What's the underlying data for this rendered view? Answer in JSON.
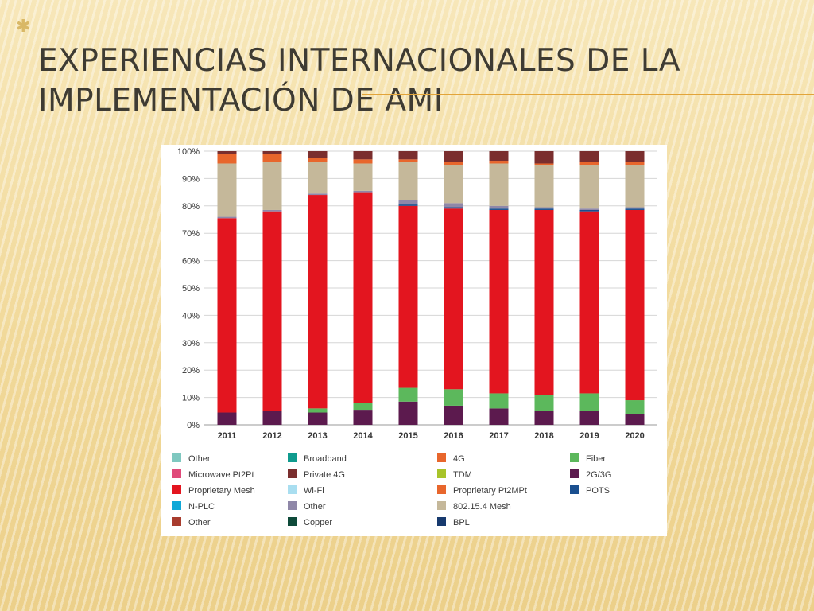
{
  "slide": {
    "title_line1": "Experiencias internacionales de la",
    "title_line2": "implementación de AMI"
  },
  "colors": {
    "accent_rule": "#e2a43a",
    "title_text": "#3e3b33"
  },
  "chart_data": {
    "type": "bar",
    "stacked": true,
    "categories": [
      "2011",
      "2012",
      "2013",
      "2014",
      "2015",
      "2016",
      "2017",
      "2018",
      "2019",
      "2020"
    ],
    "y_ticks": [
      "0%",
      "10%",
      "20%",
      "30%",
      "40%",
      "50%",
      "60%",
      "70%",
      "80%",
      "90%",
      "100%"
    ],
    "ylim": [
      0,
      100
    ],
    "grid": true,
    "legend_position": "bottom",
    "title": "",
    "xlabel": "",
    "ylabel": "",
    "series": [
      {
        "name": "2G/3G",
        "color": "#5c1a4e",
        "values": [
          4.5,
          5,
          4.5,
          5.5,
          8.5,
          7,
          6,
          5,
          5,
          4
        ]
      },
      {
        "name": "Fiber",
        "color": "#5cb85c",
        "values": [
          0,
          0,
          1.5,
          2.5,
          5,
          6,
          5.5,
          6,
          6.5,
          5
        ]
      },
      {
        "name": "Proprietary Mesh",
        "color": "#e3151f",
        "values": [
          71,
          73,
          78,
          77,
          66.5,
          66,
          67,
          67.5,
          66.5,
          69.5
        ]
      },
      {
        "name": "POTS",
        "color": "#1a4f8f",
        "values": [
          0,
          0,
          0,
          0,
          0.5,
          0.5,
          0.5,
          0.5,
          0.5,
          0.5
        ]
      },
      {
        "name": "Other",
        "color": "#8f87a8",
        "values": [
          0.5,
          0.5,
          0.5,
          0.5,
          1.5,
          1.5,
          1,
          0.5,
          0.5,
          0.5
        ]
      },
      {
        "name": "802.15.4 Mesh",
        "color": "#c5b89a",
        "values": [
          19.5,
          17.5,
          11.5,
          10,
          14,
          14,
          15.5,
          15.5,
          16,
          15.5
        ]
      },
      {
        "name": "Proprietary Pt2MPt",
        "color": "#e8662c",
        "values": [
          3.5,
          3,
          1.5,
          1.5,
          1,
          1,
          1,
          0.5,
          1,
          1
        ]
      },
      {
        "name": "Private 4G",
        "color": "#7a2e2e",
        "values": [
          1,
          1,
          2.5,
          3,
          3,
          4,
          3.5,
          4.5,
          4,
          4
        ]
      }
    ],
    "legend": [
      {
        "label": "Other",
        "color": "#7fc8c0"
      },
      {
        "label": "Broadband",
        "color": "#0f9b8e"
      },
      {
        "label": "4G",
        "color": "#e8662c"
      },
      {
        "label": "Fiber",
        "color": "#5cb85c"
      },
      {
        "label": "Microwave Pt2Pt",
        "color": "#e04a7a"
      },
      {
        "label": "Private 4G",
        "color": "#7a2e2e"
      },
      {
        "label": "TDM",
        "color": "#a8c42a"
      },
      {
        "label": "2G/3G",
        "color": "#5c1a4e"
      },
      {
        "label": "Proprietary Mesh",
        "color": "#e3151f"
      },
      {
        "label": "Wi-Fi",
        "color": "#a9def0"
      },
      {
        "label": "Proprietary Pt2MPt",
        "color": "#e8662c"
      },
      {
        "label": "POTS",
        "color": "#1a4f8f"
      },
      {
        "label": "N-PLC",
        "color": "#10a8d8"
      },
      {
        "label": "Other",
        "color": "#8f87a8"
      },
      {
        "label": "802.15.4 Mesh",
        "color": "#c5b89a"
      },
      {
        "label": "",
        "color": ""
      },
      {
        "label": "Other",
        "color": "#a83c2e"
      },
      {
        "label": "Copper",
        "color": "#0e4a3a"
      },
      {
        "label": "BPL",
        "color": "#173a6e"
      },
      {
        "label": "",
        "color": ""
      }
    ]
  }
}
